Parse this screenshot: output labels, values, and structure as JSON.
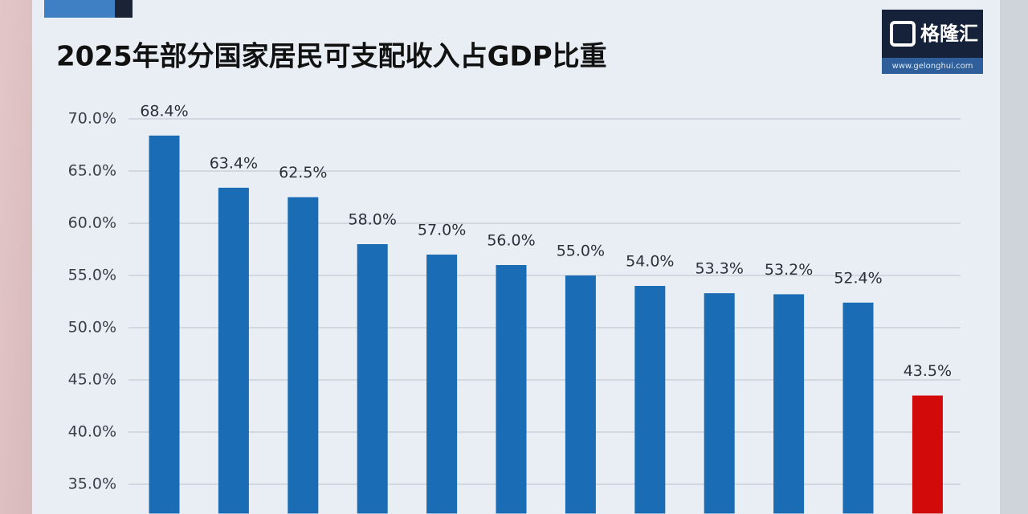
{
  "chart_data": {
    "type": "bar",
    "title": "2025年部分国家居民可支配收入占GDP比重",
    "logo": {
      "name": "格隆汇",
      "url": "www.gelonghui.com"
    },
    "categories": [
      null,
      null,
      null,
      null,
      null,
      null,
      null,
      null,
      null,
      null,
      null,
      null
    ],
    "values": [
      68.4,
      63.4,
      62.5,
      58.0,
      57.0,
      56.0,
      55.0,
      54.0,
      53.3,
      53.2,
      52.4,
      43.5
    ],
    "value_labels": [
      "68.4%",
      "63.4%",
      "62.5%",
      "58.0%",
      "57.0%",
      "56.0%",
      "55.0%",
      "54.0%",
      "53.3%",
      "53.2%",
      "52.4%",
      "43.5%"
    ],
    "colors": [
      "#1a6cb5",
      "#1a6cb5",
      "#1a6cb5",
      "#1a6cb5",
      "#1a6cb5",
      "#1a6cb5",
      "#1a6cb5",
      "#1a6cb5",
      "#1a6cb5",
      "#1a6cb5",
      "#1a6cb5",
      "#d20a0a"
    ],
    "ylim": [
      32.2,
      72
    ],
    "yticks": [
      {
        "value": 35,
        "label": "35.0%"
      },
      {
        "value": 40,
        "label": "40.0%"
      },
      {
        "value": 45,
        "label": "45.0%"
      },
      {
        "value": 50,
        "label": "50.0%"
      },
      {
        "value": 55,
        "label": "55.0%"
      },
      {
        "value": 60,
        "label": "60.0%"
      },
      {
        "value": 65,
        "label": "65.0%"
      },
      {
        "value": 70,
        "label": "70.0%"
      }
    ],
    "grid": true
  }
}
